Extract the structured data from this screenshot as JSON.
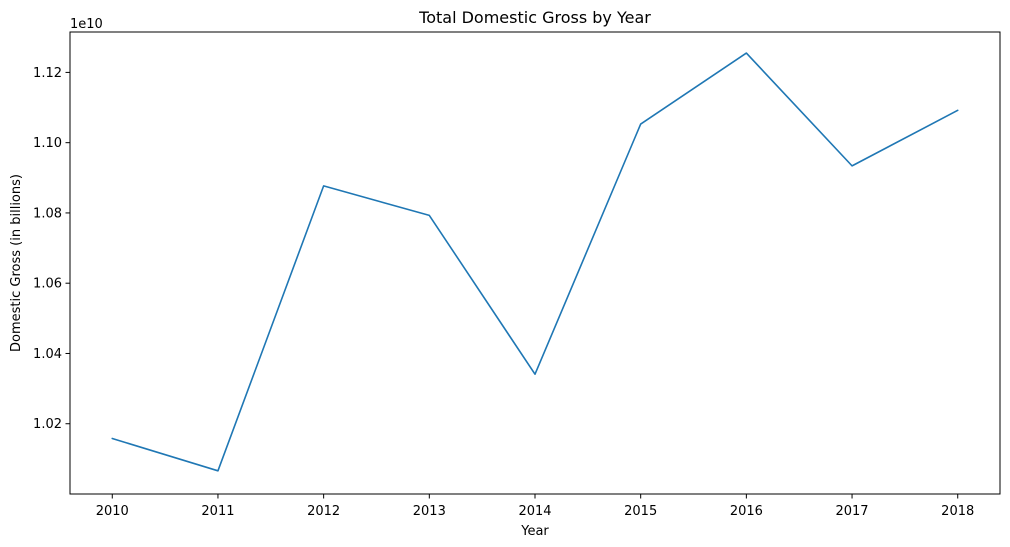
{
  "chart_data": {
    "type": "line",
    "title": "Total Domestic Gross by Year",
    "xlabel": "Year",
    "ylabel": "Domestic Gross (in billions)",
    "offset_text": "1e10",
    "x": [
      2010,
      2011,
      2012,
      2013,
      2014,
      2015,
      2016,
      2017,
      2018
    ],
    "series": [
      {
        "values": [
          10158000000,
          10066000000,
          10877000000,
          10793000000,
          10341000000,
          11053000000,
          11255000000,
          10934000000,
          11092000000
        ]
      }
    ],
    "xticks": [
      "2010",
      "2011",
      "2012",
      "2013",
      "2014",
      "2015",
      "2016",
      "2017",
      "2018"
    ],
    "yticks": [
      {
        "value": 10200000000.0,
        "label": "1.02"
      },
      {
        "value": 10400000000.0,
        "label": "1.04"
      },
      {
        "value": 10600000000.0,
        "label": "1.06"
      },
      {
        "value": 10800000000.0,
        "label": "1.08"
      },
      {
        "value": 11000000000.0,
        "label": "1.10"
      },
      {
        "value": 11200000000.0,
        "label": "1.12"
      }
    ],
    "xlim": [
      2009.6,
      2018.4
    ],
    "ylim": [
      10000000000,
      11315000000
    ],
    "grid": false,
    "line_color": "#1f77b4"
  }
}
